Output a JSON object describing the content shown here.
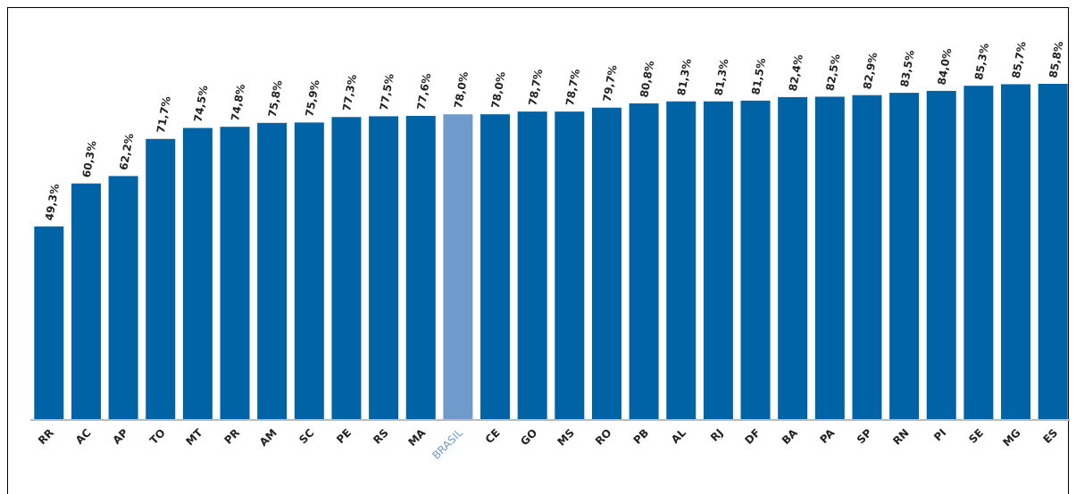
{
  "chart_data": {
    "type": "bar",
    "categories": [
      "RR",
      "AC",
      "AP",
      "TO",
      "MT",
      "PR",
      "AM",
      "SC",
      "PE",
      "RS",
      "MA",
      "BRASIL",
      "CE",
      "GO",
      "MS",
      "RO",
      "PB",
      "AL",
      "RJ",
      "DF",
      "BA",
      "PA",
      "SP",
      "RN",
      "PI",
      "SE",
      "MG",
      "ES"
    ],
    "values": [
      49.3,
      60.3,
      62.2,
      71.7,
      74.5,
      74.8,
      75.8,
      75.9,
      77.3,
      77.5,
      77.6,
      78.0,
      78.0,
      78.7,
      78.7,
      79.7,
      80.8,
      81.3,
      81.3,
      81.5,
      82.4,
      82.5,
      82.9,
      83.5,
      84.0,
      85.3,
      85.7,
      85.8
    ],
    "value_labels": [
      "49,3%",
      "60,3%",
      "62,2%",
      "71,7%",
      "74,5%",
      "74,8%",
      "75,8%",
      "75,9%",
      "77,3%",
      "77,5%",
      "77,6%",
      "78,0%",
      "78,0%",
      "78,7%",
      "78,7%",
      "79,7%",
      "80,8%",
      "81,3%",
      "81,3%",
      "81,5%",
      "82,4%",
      "82,5%",
      "82,9%",
      "83,5%",
      "84,0%",
      "85,3%",
      "85,7%",
      "85,8%"
    ],
    "colors": [
      "#0063a6",
      "#0063a6",
      "#0063a6",
      "#0063a6",
      "#0063a6",
      "#0063a6",
      "#0063a6",
      "#0063a6",
      "#0063a6",
      "#0063a6",
      "#0063a6",
      "#6f9bcc",
      "#0063a6",
      "#0063a6",
      "#0063a6",
      "#0063a6",
      "#0063a6",
      "#0063a6",
      "#0063a6",
      "#0063a6",
      "#0063a6",
      "#0063a6",
      "#0063a6",
      "#0063a6",
      "#0063a6",
      "#0063a6",
      "#0063a6",
      "#0063a6"
    ]
  }
}
